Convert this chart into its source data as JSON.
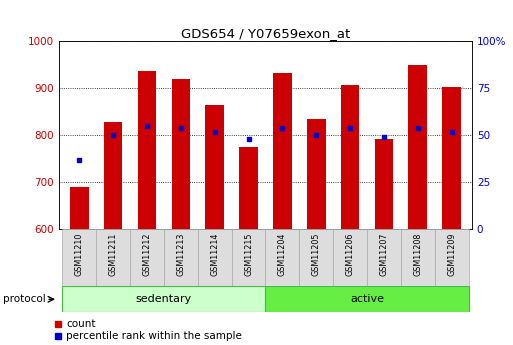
{
  "title": "GDS654 / Y07659exon_at",
  "samples": [
    "GSM11210",
    "GSM11211",
    "GSM11212",
    "GSM11213",
    "GSM11214",
    "GSM11215",
    "GSM11204",
    "GSM11205",
    "GSM11206",
    "GSM11207",
    "GSM11208",
    "GSM11209"
  ],
  "count_values": [
    690,
    828,
    938,
    920,
    865,
    775,
    933,
    835,
    908,
    793,
    950,
    903
  ],
  "percentile_values": [
    37,
    50,
    55,
    54,
    52,
    48,
    54,
    50,
    54,
    49,
    54,
    52
  ],
  "ylim_left": [
    600,
    1000
  ],
  "ylim_right": [
    0,
    100
  ],
  "yticks_left": [
    600,
    700,
    800,
    900,
    1000
  ],
  "yticks_right": [
    0,
    25,
    50,
    75,
    100
  ],
  "ytick_right_labels": [
    "0",
    "25",
    "50",
    "75",
    "100%"
  ],
  "groups": [
    {
      "label": "sedentary",
      "start": 0,
      "end": 5,
      "color": "#ccffcc",
      "edge": "#44bb44"
    },
    {
      "label": "active",
      "start": 6,
      "end": 11,
      "color": "#66ee44",
      "edge": "#44bb44"
    }
  ],
  "bar_color": "#cc0000",
  "dot_color": "#0000cc",
  "bar_width": 0.55,
  "background_color": "#ffffff",
  "tick_label_color_left": "#cc0000",
  "tick_label_color_right": "#0000cc",
  "protocol_label": "protocol",
  "count_label": "count",
  "percentile_label": "percentile rank within the sample",
  "cell_bg": "#dddddd",
  "cell_edge": "#aaaaaa"
}
